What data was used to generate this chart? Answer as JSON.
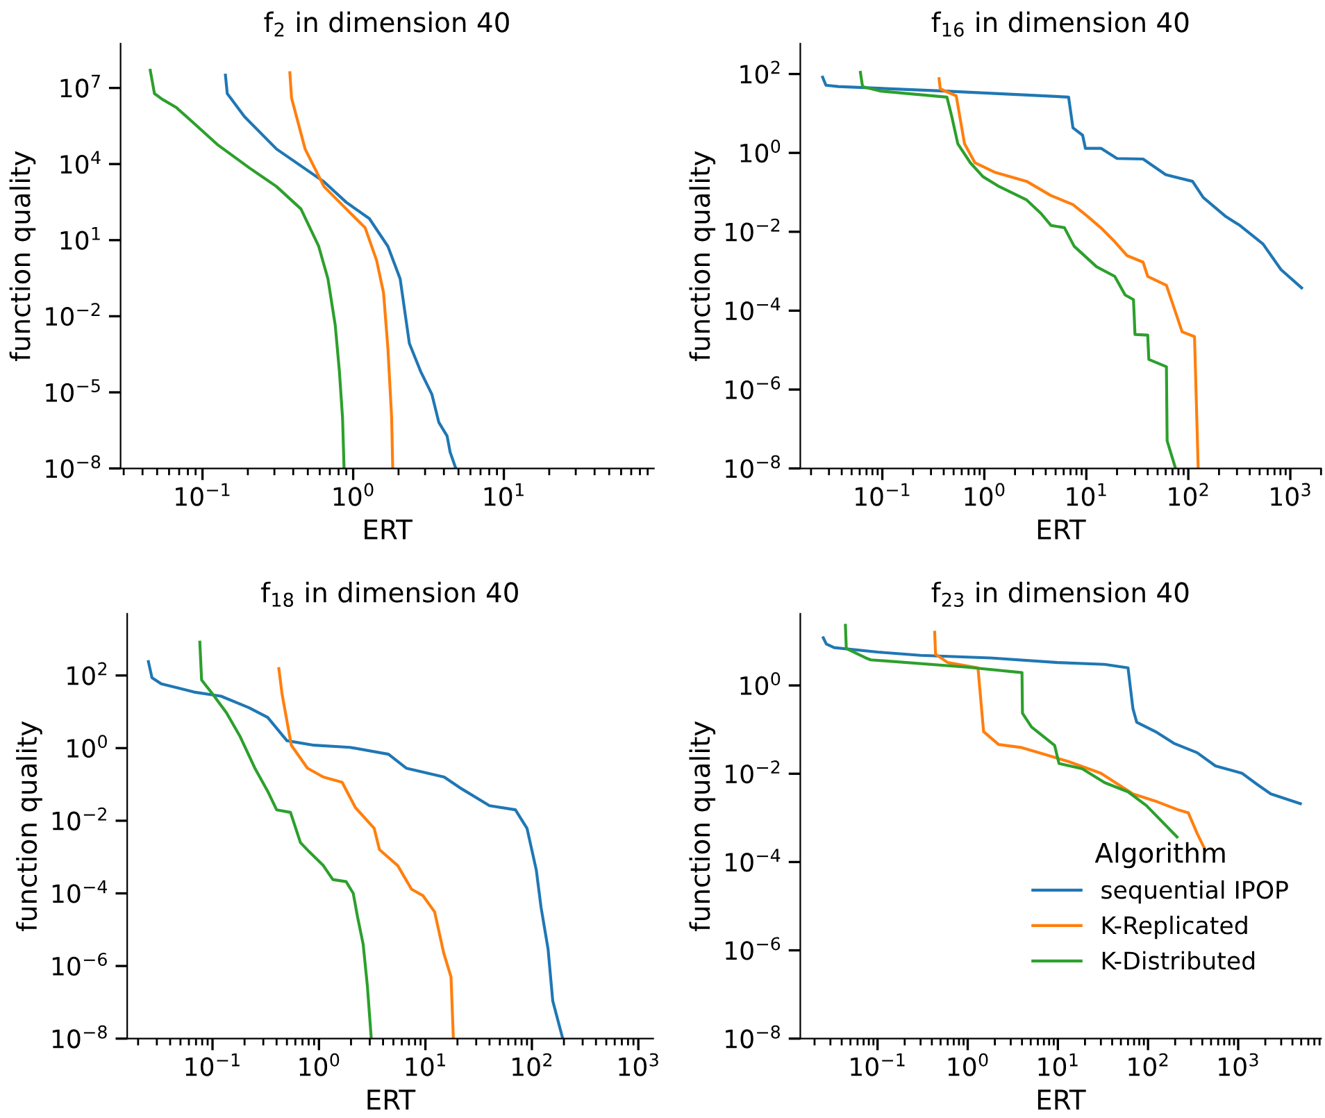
{
  "chart_data": [
    {
      "type": "line",
      "title": "f$_{2}$ in dimension 40",
      "xlabel": "ERT",
      "ylabel": "function quality",
      "log": "xy",
      "xlim": [
        0.0286,
        99
      ],
      "ylim": [
        1e-08,
        560000000.0
      ],
      "xticks": [
        {
          "value": 0.1,
          "label": "10$^{−1}$"
        },
        {
          "value": 1,
          "label": "10$^{0}$"
        },
        {
          "value": 10,
          "label": "10$^{1}$"
        }
      ],
      "yticks": [
        {
          "value": 1e-08,
          "label": "10$^{−8}$"
        },
        {
          "value": 1e-05,
          "label": "10$^{−5}$"
        },
        {
          "value": 0.01,
          "label": "10$^{−2}$"
        },
        {
          "value": 10,
          "label": "10$^{1}$"
        },
        {
          "value": 10000,
          "label": "10$^{4}$"
        },
        {
          "value": 10000000.0,
          "label": "10$^{7}$"
        }
      ],
      "series": [
        {
          "color": "#1f77b4",
          "x": [
            0.142,
            0.146,
            0.19,
            0.31,
            0.64,
            0.9,
            1.28,
            1.7,
            2.05,
            2.36,
            2.8,
            3.33,
            3.7,
            4.2,
            4.4,
            4.8
          ],
          "values": [
            32000000.0,
            6000000.0,
            740000.0,
            39000.0,
            2000,
            310,
            71,
            5.7,
            0.3,
            0.00085,
            6.8e-05,
            8.3e-06,
            6.6e-07,
            1.9e-07,
            4.4e-08,
            1e-08
          ]
        },
        {
          "color": "#ff7f0e",
          "x": [
            0.38,
            0.39,
            0.48,
            0.64,
            0.9,
            1.2,
            1.43,
            1.59,
            1.7,
            1.8,
            1.83
          ],
          "values": [
            40000000.0,
            4000000.0,
            39000.0,
            1300,
            170,
            31,
            1.6,
            0.085,
            0.00055,
            1e-06,
            1e-08
          ]
        },
        {
          "color": "#2ca02c",
          "x": [
            0.045,
            0.048,
            0.054,
            0.067,
            0.088,
            0.125,
            0.205,
            0.31,
            0.45,
            0.59,
            0.68,
            0.76,
            0.81,
            0.85,
            0.87
          ],
          "values": [
            50000000.0,
            6000000.0,
            3600000.0,
            1700000.0,
            400000.0,
            60000.0,
            7000,
            1300,
            170,
            5.8,
            0.3,
            0.0045,
            6.8e-05,
            1e-06,
            1e-08
          ]
        }
      ]
    },
    {
      "type": "line",
      "title": "f$_{16}$ in dimension 40",
      "xlabel": "ERT",
      "ylabel": "function quality",
      "log": "xy",
      "xlim": [
        0.0157,
        2000
      ],
      "ylim": [
        1e-08,
        590
      ],
      "xticks": [
        {
          "value": 0.1,
          "label": "10$^{−1}$"
        },
        {
          "value": 1,
          "label": "10$^{0}$"
        },
        {
          "value": 10,
          "label": "10$^{1}$"
        },
        {
          "value": 100,
          "label": "10$^{2}$"
        },
        {
          "value": 1000,
          "label": "10$^{3}$"
        }
      ],
      "yticks": [
        {
          "value": 1e-08,
          "label": "10$^{−8}$"
        },
        {
          "value": 1e-06,
          "label": "10$^{−6}$"
        },
        {
          "value": 0.0001,
          "label": "10$^{−4}$"
        },
        {
          "value": 0.01,
          "label": "10$^{−2}$"
        },
        {
          "value": 1,
          "label": "10$^{0}$"
        },
        {
          "value": 100,
          "label": "10$^{2}$"
        }
      ],
      "series": [
        {
          "color": "#1f77b4",
          "x": [
            0.026,
            0.028,
            0.037,
            0.41,
            6.7,
            7.4,
            9.2,
            9.8,
            14,
            20,
            36,
            60,
            110,
            140,
            230,
            320,
            540,
            810,
            1290
          ],
          "values": [
            83,
            52,
            48,
            37,
            26,
            4.3,
            2.8,
            1.3,
            1.3,
            0.72,
            0.7,
            0.28,
            0.19,
            0.074,
            0.025,
            0.0145,
            0.0049,
            0.0011,
            0.00038
          ]
        },
        {
          "color": "#ff7f0e",
          "x": [
            0.36,
            0.37,
            0.53,
            0.64,
            0.81,
            1.28,
            2.6,
            4.5,
            7.4,
            10.2,
            13.9,
            19,
            25,
            36,
            40,
            61,
            87,
            115,
            125
          ],
          "values": [
            76,
            42,
            28,
            1.7,
            0.56,
            0.32,
            0.19,
            0.083,
            0.049,
            0.025,
            0.0126,
            0.0056,
            0.0025,
            0.0017,
            0.00074,
            0.00044,
            2.9e-05,
            2.2e-05,
            1e-08
          ]
        },
        {
          "color": "#2ca02c",
          "x": [
            0.061,
            0.064,
            0.095,
            0.43,
            0.48,
            0.55,
            0.73,
            0.97,
            1.4,
            2.6,
            3.6,
            4.5,
            6.1,
            7.6,
            12.6,
            19,
            24,
            29,
            30,
            40,
            41,
            61,
            62,
            75
          ],
          "values": [
            110,
            48,
            37,
            26,
            8.3,
            1.7,
            0.56,
            0.25,
            0.14,
            0.064,
            0.029,
            0.0145,
            0.0127,
            0.0043,
            0.0013,
            0.00074,
            0.00025,
            0.00019,
            2.5e-05,
            2.4e-05,
            5.8e-06,
            3.8e-06,
            5e-08,
            1e-08
          ]
        }
      ]
    },
    {
      "type": "line",
      "title": "f$_{18}$ in dimension 40",
      "xlabel": "ERT",
      "ylabel": "function quality",
      "log": "xy",
      "xlim": [
        0.0158,
        1380
      ],
      "ylim": [
        1e-08,
        5000
      ],
      "xticks": [
        {
          "value": 0.1,
          "label": "10$^{−1}$"
        },
        {
          "value": 1,
          "label": "10$^{0}$"
        },
        {
          "value": 10,
          "label": "10$^{1}$"
        },
        {
          "value": 100,
          "label": "10$^{2}$"
        },
        {
          "value": 1000,
          "label": "10$^{3}$"
        }
      ],
      "yticks": [
        {
          "value": 1e-08,
          "label": "10$^{−8}$"
        },
        {
          "value": 1e-06,
          "label": "10$^{−6}$"
        },
        {
          "value": 0.0001,
          "label": "10$^{−4}$"
        },
        {
          "value": 0.01,
          "label": "10$^{−2}$"
        },
        {
          "value": 1,
          "label": "10$^{0}$"
        },
        {
          "value": 100,
          "label": "10$^{2}$"
        }
      ],
      "series": [
        {
          "color": "#1f77b4",
          "x": [
            0.025,
            0.027,
            0.033,
            0.067,
            0.12,
            0.22,
            0.33,
            0.5,
            0.9,
            1.95,
            4.5,
            6.6,
            15,
            22,
            40,
            70,
            90,
            110,
            122,
            142,
            157,
            195
          ],
          "values": [
            240,
            87,
            59,
            35,
            27,
            13,
            7,
            1.6,
            1.2,
            1.05,
            0.68,
            0.28,
            0.16,
            0.075,
            0.026,
            0.02,
            0.0062,
            0.00044,
            4.1e-05,
            2.9e-06,
            1.1e-07,
            1e-08
          ]
        },
        {
          "color": "#ff7f0e",
          "x": [
            0.42,
            0.45,
            0.55,
            0.78,
            1.1,
            1.65,
            2.2,
            3.3,
            3.7,
            5.5,
            7.4,
            9.5,
            12.2,
            14.9,
            17.4,
            18.3
          ],
          "values": [
            155,
            31,
            1.2,
            0.28,
            0.16,
            0.115,
            0.023,
            0.0062,
            0.0016,
            0.00058,
            0.00013,
            8.6e-05,
            3.1e-05,
            2.2e-06,
            5e-07,
            1e-08
          ]
        },
        {
          "color": "#2ca02c",
          "x": [
            0.076,
            0.079,
            0.1,
            0.135,
            0.18,
            0.25,
            0.33,
            0.4,
            0.54,
            0.67,
            0.81,
            1.1,
            1.35,
            1.8,
            2.1,
            2.3,
            2.6,
            2.85,
            3.1
          ],
          "values": [
            830,
            75,
            31,
            9.5,
            2.2,
            0.28,
            0.065,
            0.02,
            0.017,
            0.0025,
            0.0014,
            0.00058,
            0.00024,
            0.00021,
            0.0001,
            2.3e-05,
            4e-06,
            2.8e-07,
            1e-08
          ]
        }
      ]
    },
    {
      "type": "line",
      "title": "f$_{23}$ in dimension 40",
      "xlabel": "ERT",
      "ylabel": "function quality",
      "log": "xy",
      "xlim": [
        0.0139,
        8300
      ],
      "ylim": [
        1e-08,
        42
      ],
      "xticks": [
        {
          "value": 0.1,
          "label": "10$^{−1}$"
        },
        {
          "value": 1,
          "label": "10$^{0}$"
        },
        {
          "value": 10,
          "label": "10$^{1}$"
        },
        {
          "value": 100,
          "label": "10$^{2}$"
        },
        {
          "value": 1000,
          "label": "10$^{3}$"
        }
      ],
      "yticks": [
        {
          "value": 1e-08,
          "label": "10$^{−8}$"
        },
        {
          "value": 1e-06,
          "label": "10$^{−6}$"
        },
        {
          "value": 0.0001,
          "label": "10$^{−4}$"
        },
        {
          "value": 0.01,
          "label": "10$^{−2}$"
        },
        {
          "value": 1,
          "label": "10$^{0}$"
        }
      ],
      "legend": "bottom right",
      "legend_title": "Algorithm",
      "series": [
        {
          "name": "sequential IPOP",
          "color": "#1f77b4",
          "x": [
            0.025,
            0.027,
            0.033,
            0.1,
            0.3,
            1.8,
            10,
            33,
            60,
            68,
            75,
            121,
            193,
            350,
            560,
            1100,
            1650,
            2300,
            4900
          ],
          "values": [
            12,
            8.7,
            7.2,
            5.7,
            4.8,
            4.2,
            3.3,
            3,
            2.5,
            0.3,
            0.146,
            0.09,
            0.049,
            0.03,
            0.015,
            0.0103,
            0.0056,
            0.0035,
            0.0021
          ]
        },
        {
          "name": "K-Replicated",
          "color": "#ff7f0e",
          "x": [
            0.43,
            0.44,
            0.6,
            1.3,
            1.5,
            2.2,
            4,
            7.3,
            13,
            30,
            68,
            121,
            220,
            280,
            350,
            430
          ],
          "values": [
            16,
            5.1,
            3.3,
            2.5,
            0.09,
            0.046,
            0.039,
            0.027,
            0.019,
            0.0103,
            0.0035,
            0.0024,
            0.0015,
            0.0013,
            0.00045,
            0.00019
          ]
        },
        {
          "name": "K-Distributed",
          "color": "#2ca02c",
          "x": [
            0.044,
            0.045,
            0.074,
            0.084,
            0.98,
            4.0,
            4.05,
            5.1,
            9.2,
            10.3,
            18.6,
            33,
            60,
            96,
            210
          ],
          "values": [
            23,
            6.9,
            4.2,
            3.8,
            2.6,
            1.95,
            0.235,
            0.115,
            0.044,
            0.017,
            0.013,
            0.0063,
            0.0039,
            0.0019,
            0.00037
          ]
        }
      ]
    }
  ]
}
